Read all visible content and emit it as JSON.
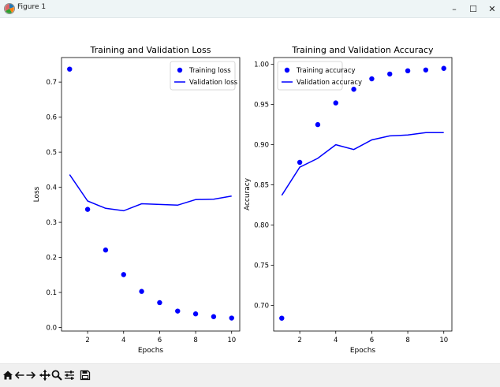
{
  "window": {
    "title": "Figure 1",
    "minimize_label": "–",
    "maximize_label": "☐",
    "close_label": "✕"
  },
  "toolbar": {
    "buttons": [
      {
        "name": "home-icon"
      },
      {
        "name": "back-arrow-icon"
      },
      {
        "name": "forward-arrow-icon"
      },
      {
        "name": "pan-icon"
      },
      {
        "name": "zoom-icon"
      },
      {
        "name": "configure-subplots-icon"
      },
      {
        "name": "save-icon"
      }
    ]
  },
  "colors": {
    "series": "#0000ff",
    "titlebar": "#eef5f6",
    "toolbar": "#f0f0f0"
  },
  "chart_data": [
    {
      "type": "line",
      "title": "Training and Validation Loss",
      "xlabel": "Epochs",
      "ylabel": "Loss",
      "xlim": [
        0.55,
        10.45
      ],
      "ylim": [
        -0.01,
        0.77
      ],
      "xticks": [
        2,
        4,
        6,
        8,
        10
      ],
      "yticks": [
        0.0,
        0.1,
        0.2,
        0.3,
        0.4,
        0.5,
        0.6,
        0.7
      ],
      "ytick_labels": [
        "0.0",
        "0.1",
        "0.2",
        "0.3",
        "0.4",
        "0.5",
        "0.6",
        "0.7"
      ],
      "legend": "top-right",
      "grid": false,
      "x": [
        1,
        2,
        3,
        4,
        5,
        6,
        7,
        8,
        9,
        10
      ],
      "series": [
        {
          "name": "Training loss",
          "style": "dots",
          "values": [
            0.737,
            0.337,
            0.221,
            0.151,
            0.103,
            0.071,
            0.047,
            0.039,
            0.031,
            0.027
          ]
        },
        {
          "name": "Validation loss",
          "style": "line",
          "values": [
            0.436,
            0.361,
            0.34,
            0.333,
            0.353,
            0.351,
            0.349,
            0.365,
            0.366,
            0.375
          ]
        }
      ]
    },
    {
      "type": "line",
      "title": "Training and Validation Accuracy",
      "xlabel": "Epochs",
      "ylabel": "Accuracy",
      "xlim": [
        0.55,
        10.45
      ],
      "ylim": [
        0.668,
        1.0085
      ],
      "xticks": [
        2,
        4,
        6,
        8,
        10
      ],
      "yticks": [
        0.7,
        0.75,
        0.8,
        0.85,
        0.9,
        0.95,
        1.0
      ],
      "ytick_labels": [
        "0.70",
        "0.75",
        "0.80",
        "0.85",
        "0.90",
        "0.95",
        "1.00"
      ],
      "legend": "top-left",
      "grid": false,
      "x": [
        1,
        2,
        3,
        4,
        5,
        6,
        7,
        8,
        9,
        10
      ],
      "series": [
        {
          "name": "Training accuracy",
          "style": "dots",
          "values": [
            0.684,
            0.878,
            0.925,
            0.952,
            0.969,
            0.982,
            0.988,
            0.992,
            0.993,
            0.995
          ]
        },
        {
          "name": "Validation accuracy",
          "style": "line",
          "values": [
            0.837,
            0.872,
            0.883,
            0.9,
            0.894,
            0.906,
            0.911,
            0.912,
            0.915,
            0.915
          ]
        }
      ]
    }
  ]
}
